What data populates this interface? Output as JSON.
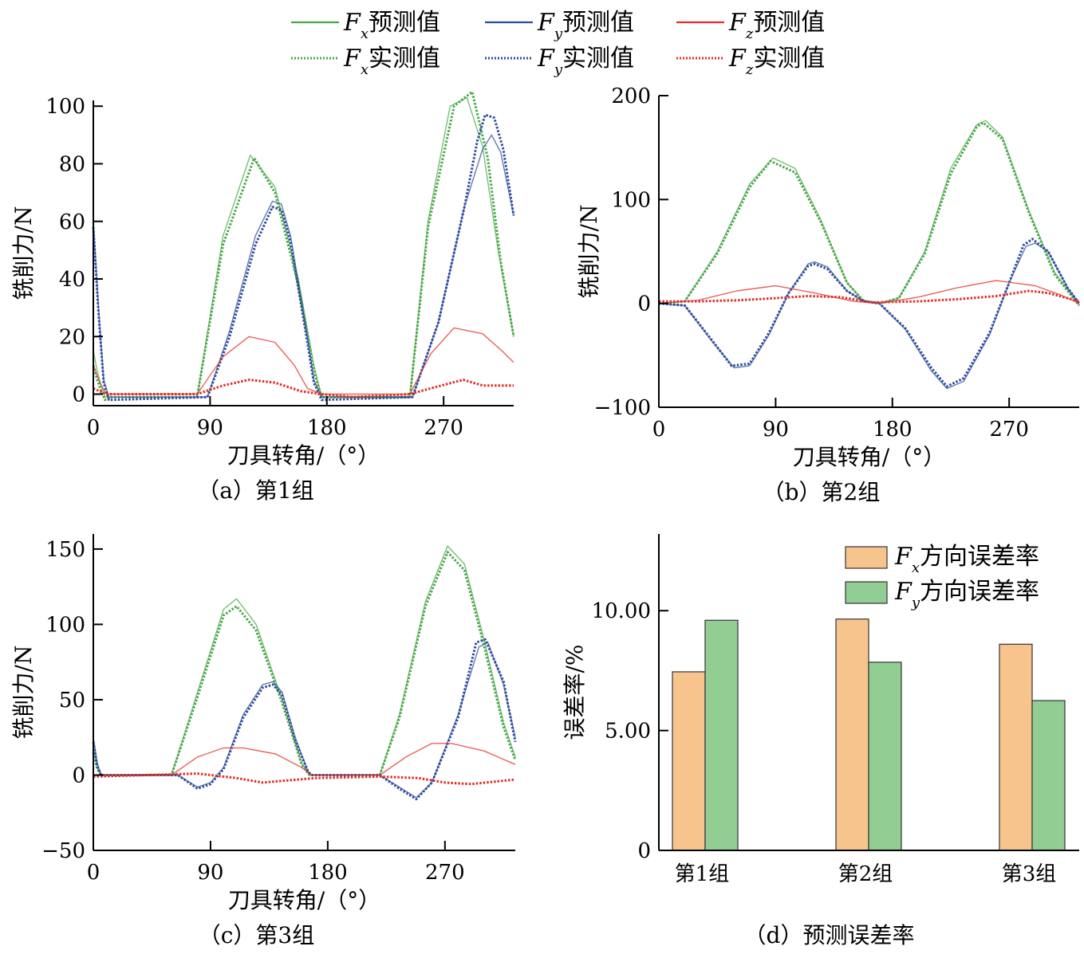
{
  "legend": {
    "items": [
      {
        "symbol": "F",
        "sub": "x",
        "label": "预测值",
        "color": "#4aa84a",
        "style": "solid"
      },
      {
        "symbol": "F",
        "sub": "y",
        "label": "预测值",
        "color": "#2f4c9e",
        "style": "solid"
      },
      {
        "symbol": "F",
        "sub": "z",
        "label": "预测值",
        "color": "#e0302a",
        "style": "solid"
      },
      {
        "symbol": "F",
        "sub": "x",
        "label": "实测值",
        "color": "#4aa84a",
        "style": "dotted"
      },
      {
        "symbol": "F",
        "sub": "y",
        "label": "实测值",
        "color": "#2f4c9e",
        "style": "dotted"
      },
      {
        "symbol": "F",
        "sub": "z",
        "label": "实测值",
        "color": "#e0302a",
        "style": "dotted"
      }
    ]
  },
  "chart_data": [
    {
      "id": "a",
      "type": "line",
      "caption": "（a）第1组",
      "xlabel": "刀具转角/（°）",
      "ylabel": "铣削力/N",
      "xlim": [
        0,
        324
      ],
      "ylim": [
        -4,
        102
      ],
      "xticks": [
        0,
        90,
        180,
        270
      ],
      "yticks": [
        0,
        20,
        40,
        60,
        80,
        100
      ],
      "series": [
        {
          "key": "Fx_pred",
          "color": "#4aa84a",
          "style": "solid",
          "x": [
            0,
            3,
            6,
            9,
            12,
            80,
            100,
            121,
            140,
            158,
            170,
            176,
            244,
            258,
            275,
            288,
            300,
            312,
            324
          ],
          "y": [
            15,
            8,
            3,
            -1,
            -1,
            -1,
            55,
            83,
            72,
            40,
            10,
            -1,
            -1,
            60,
            100,
            103,
            86,
            50,
            20
          ]
        },
        {
          "key": "Fx_meas",
          "color": "#4aa84a",
          "style": "dotted",
          "x": [
            0,
            3,
            6,
            9,
            12,
            80,
            100,
            124,
            140,
            158,
            170,
            176,
            244,
            258,
            278,
            292,
            304,
            314,
            324
          ],
          "y": [
            10,
            5,
            1,
            -2,
            -1,
            -1,
            52,
            82,
            70,
            38,
            8,
            -1,
            -1,
            58,
            100,
            105,
            82,
            46,
            20
          ]
        },
        {
          "key": "Fy_pred",
          "color": "#2f4c9e",
          "style": "solid",
          "x": [
            0,
            4,
            8,
            12,
            88,
            105,
            125,
            138,
            145,
            152,
            165,
            170,
            176,
            246,
            266,
            286,
            300,
            307,
            314,
            324
          ],
          "y": [
            60,
            30,
            5,
            -1,
            -1,
            22,
            55,
            67,
            66,
            55,
            20,
            5,
            -1,
            -1,
            25,
            65,
            85,
            90,
            84,
            62
          ]
        },
        {
          "key": "Fy_meas",
          "color": "#2f4c9e",
          "style": "dotted",
          "x": [
            0,
            4,
            8,
            12,
            88,
            105,
            125,
            138,
            145,
            152,
            165,
            170,
            176,
            246,
            266,
            286,
            296,
            302,
            309,
            316,
            324
          ],
          "y": [
            58,
            28,
            4,
            -2,
            -1,
            20,
            52,
            65,
            64,
            53,
            18,
            4,
            -2,
            -1,
            25,
            65,
            88,
            97,
            96,
            85,
            62
          ]
        },
        {
          "key": "Fz_pred",
          "color": "#e0302a",
          "style": "solid",
          "x": [
            0,
            5,
            10,
            14,
            80,
            100,
            120,
            140,
            155,
            165,
            176,
            244,
            260,
            278,
            300,
            315,
            324
          ],
          "y": [
            10,
            4,
            0,
            0,
            0,
            13,
            20,
            18,
            10,
            2,
            0,
            0,
            14,
            23,
            21,
            15,
            11
          ]
        },
        {
          "key": "Fz_meas",
          "color": "#e0302a",
          "style": "dotted",
          "x": [
            0,
            10,
            80,
            100,
            120,
            140,
            160,
            176,
            200,
            244,
            260,
            285,
            300,
            324
          ],
          "y": [
            2,
            0,
            0,
            3,
            5,
            4,
            1,
            0,
            -1,
            0,
            2,
            5,
            3,
            3
          ]
        }
      ]
    },
    {
      "id": "b",
      "type": "line",
      "caption": "（b）第2组",
      "xlabel": "刀具转角/（°）",
      "ylabel": "铣削力/N",
      "xlim": [
        0,
        324
      ],
      "ylim": [
        -100,
        200
      ],
      "xticks": [
        0,
        90,
        180,
        270
      ],
      "yticks": [
        -100,
        0,
        100,
        200
      ],
      "series": [
        {
          "key": "Fx_pred",
          "color": "#4aa84a",
          "style": "solid",
          "x": [
            0,
            20,
            45,
            70,
            88,
            105,
            125,
            145,
            158,
            170,
            185,
            205,
            225,
            245,
            252,
            265,
            285,
            305,
            324
          ],
          "y": [
            0,
            2,
            50,
            115,
            140,
            130,
            80,
            20,
            2,
            0,
            5,
            50,
            130,
            172,
            176,
            160,
            90,
            30,
            -2
          ]
        },
        {
          "key": "Fx_meas",
          "color": "#4aa84a",
          "style": "dotted",
          "x": [
            0,
            20,
            45,
            70,
            86,
            105,
            125,
            145,
            158,
            170,
            185,
            205,
            225,
            245,
            250,
            265,
            285,
            305,
            324
          ],
          "y": [
            0,
            2,
            48,
            112,
            137,
            126,
            78,
            20,
            2,
            0,
            5,
            48,
            125,
            170,
            174,
            158,
            88,
            28,
            -2
          ]
        },
        {
          "key": "Fy_pred",
          "color": "#2f4c9e",
          "style": "solid",
          "x": [
            0,
            20,
            40,
            58,
            70,
            85,
            100,
            115,
            120,
            130,
            145,
            158,
            170,
            190,
            210,
            222,
            235,
            255,
            270,
            283,
            290,
            300,
            315,
            324
          ],
          "y": [
            0,
            -2,
            -35,
            -62,
            -60,
            -30,
            10,
            38,
            40,
            35,
            12,
            2,
            0,
            -25,
            -65,
            -82,
            -75,
            -30,
            20,
            55,
            58,
            50,
            15,
            0
          ]
        },
        {
          "key": "Fy_meas",
          "color": "#2f4c9e",
          "style": "dotted",
          "x": [
            0,
            20,
            40,
            56,
            70,
            85,
            100,
            115,
            120,
            130,
            145,
            158,
            170,
            190,
            210,
            222,
            235,
            255,
            270,
            281,
            288,
            300,
            315,
            324
          ],
          "y": [
            0,
            -2,
            -34,
            -60,
            -58,
            -28,
            10,
            36,
            38,
            33,
            12,
            2,
            0,
            -24,
            -62,
            -80,
            -72,
            -28,
            20,
            56,
            62,
            50,
            15,
            0
          ]
        },
        {
          "key": "Fz_pred",
          "color": "#e0302a",
          "style": "solid",
          "x": [
            0,
            30,
            60,
            90,
            120,
            150,
            170,
            200,
            230,
            260,
            290,
            310,
            324
          ],
          "y": [
            0,
            3,
            12,
            17,
            10,
            2,
            0,
            6,
            15,
            22,
            17,
            8,
            0
          ]
        },
        {
          "key": "Fz_meas",
          "color": "#e0302a",
          "style": "dotted",
          "x": [
            0,
            30,
            60,
            90,
            115,
            140,
            165,
            200,
            230,
            260,
            285,
            300,
            324
          ],
          "y": [
            2,
            2,
            3,
            5,
            7,
            6,
            1,
            2,
            4,
            7,
            12,
            10,
            2
          ]
        }
      ]
    },
    {
      "id": "c",
      "type": "line",
      "caption": "（c）第3组",
      "xlabel": "刀具转角/（°）",
      "ylabel": "铣削力/N",
      "xlim": [
        0,
        324
      ],
      "ylim": [
        -50,
        160
      ],
      "xticks": [
        0,
        90,
        180,
        270
      ],
      "yticks": [
        -50,
        0,
        50,
        100,
        150
      ],
      "series": [
        {
          "key": "Fx_pred",
          "color": "#4aa84a",
          "style": "solid",
          "x": [
            0,
            3,
            6,
            60,
            80,
            100,
            110,
            125,
            145,
            160,
            166,
            220,
            235,
            255,
            272,
            285,
            300,
            315,
            324
          ],
          "y": [
            18,
            5,
            0,
            0,
            55,
            110,
            117,
            100,
            50,
            8,
            0,
            0,
            40,
            115,
            152,
            140,
            90,
            35,
            12
          ]
        },
        {
          "key": "Fx_meas",
          "color": "#4aa84a",
          "style": "dotted",
          "x": [
            0,
            3,
            6,
            60,
            80,
            100,
            110,
            125,
            145,
            160,
            166,
            220,
            235,
            255,
            272,
            285,
            300,
            315,
            324
          ],
          "y": [
            15,
            4,
            0,
            0,
            52,
            106,
            112,
            96,
            48,
            7,
            0,
            0,
            38,
            112,
            148,
            136,
            86,
            32,
            10
          ]
        },
        {
          "key": "Fy_pred",
          "color": "#2f4c9e",
          "style": "solid",
          "x": [
            0,
            3,
            6,
            65,
            80,
            90,
            100,
            115,
            130,
            138,
            145,
            155,
            165,
            168,
            220,
            235,
            248,
            260,
            280,
            296,
            303,
            315,
            324
          ],
          "y": [
            25,
            8,
            0,
            0,
            -8,
            -5,
            5,
            40,
            60,
            62,
            55,
            25,
            2,
            0,
            0,
            -8,
            -15,
            -5,
            40,
            85,
            88,
            60,
            25
          ]
        },
        {
          "key": "Fy_meas",
          "color": "#2f4c9e",
          "style": "dotted",
          "x": [
            0,
            3,
            6,
            65,
            80,
            90,
            100,
            115,
            130,
            138,
            145,
            155,
            165,
            168,
            220,
            235,
            248,
            260,
            280,
            294,
            301,
            315,
            324
          ],
          "y": [
            22,
            6,
            0,
            0,
            -9,
            -6,
            4,
            38,
            58,
            60,
            53,
            23,
            2,
            0,
            0,
            -9,
            -16,
            -5,
            38,
            88,
            90,
            62,
            22
          ]
        },
        {
          "key": "Fz_pred",
          "color": "#e0302a",
          "style": "solid",
          "x": [
            0,
            60,
            80,
            100,
            115,
            140,
            160,
            168,
            220,
            240,
            260,
            275,
            300,
            324
          ],
          "y": [
            0,
            0,
            12,
            18,
            18,
            14,
            5,
            0,
            0,
            12,
            21,
            21,
            16,
            7
          ]
        },
        {
          "key": "Fz_meas",
          "color": "#e0302a",
          "style": "dotted",
          "x": [
            0,
            40,
            80,
            110,
            130,
            170,
            220,
            250,
            270,
            290,
            324
          ],
          "y": [
            -1,
            0,
            1,
            -2,
            -5,
            -2,
            -1,
            -2,
            -5,
            -6,
            -3
          ]
        }
      ]
    },
    {
      "id": "d",
      "type": "bar",
      "caption": "（d）预测误差率",
      "ylabel": "误差率/%",
      "ylim": [
        0,
        13.2
      ],
      "yticks": [
        0,
        5,
        10
      ],
      "ytick_labels": [
        "0",
        "5.00",
        "10.00"
      ],
      "categories": [
        "第1组",
        "第2组",
        "第3组"
      ],
      "legend_position": "top-right",
      "series": [
        {
          "symbol": "F",
          "sub": "x",
          "name": "方向误差率",
          "color": "#f8c48e",
          "values": [
            7.45,
            9.65,
            8.6
          ]
        },
        {
          "symbol": "F",
          "sub": "y",
          "name": "方向误差率",
          "color": "#92cd94",
          "values": [
            9.6,
            7.85,
            6.25
          ]
        }
      ]
    }
  ]
}
